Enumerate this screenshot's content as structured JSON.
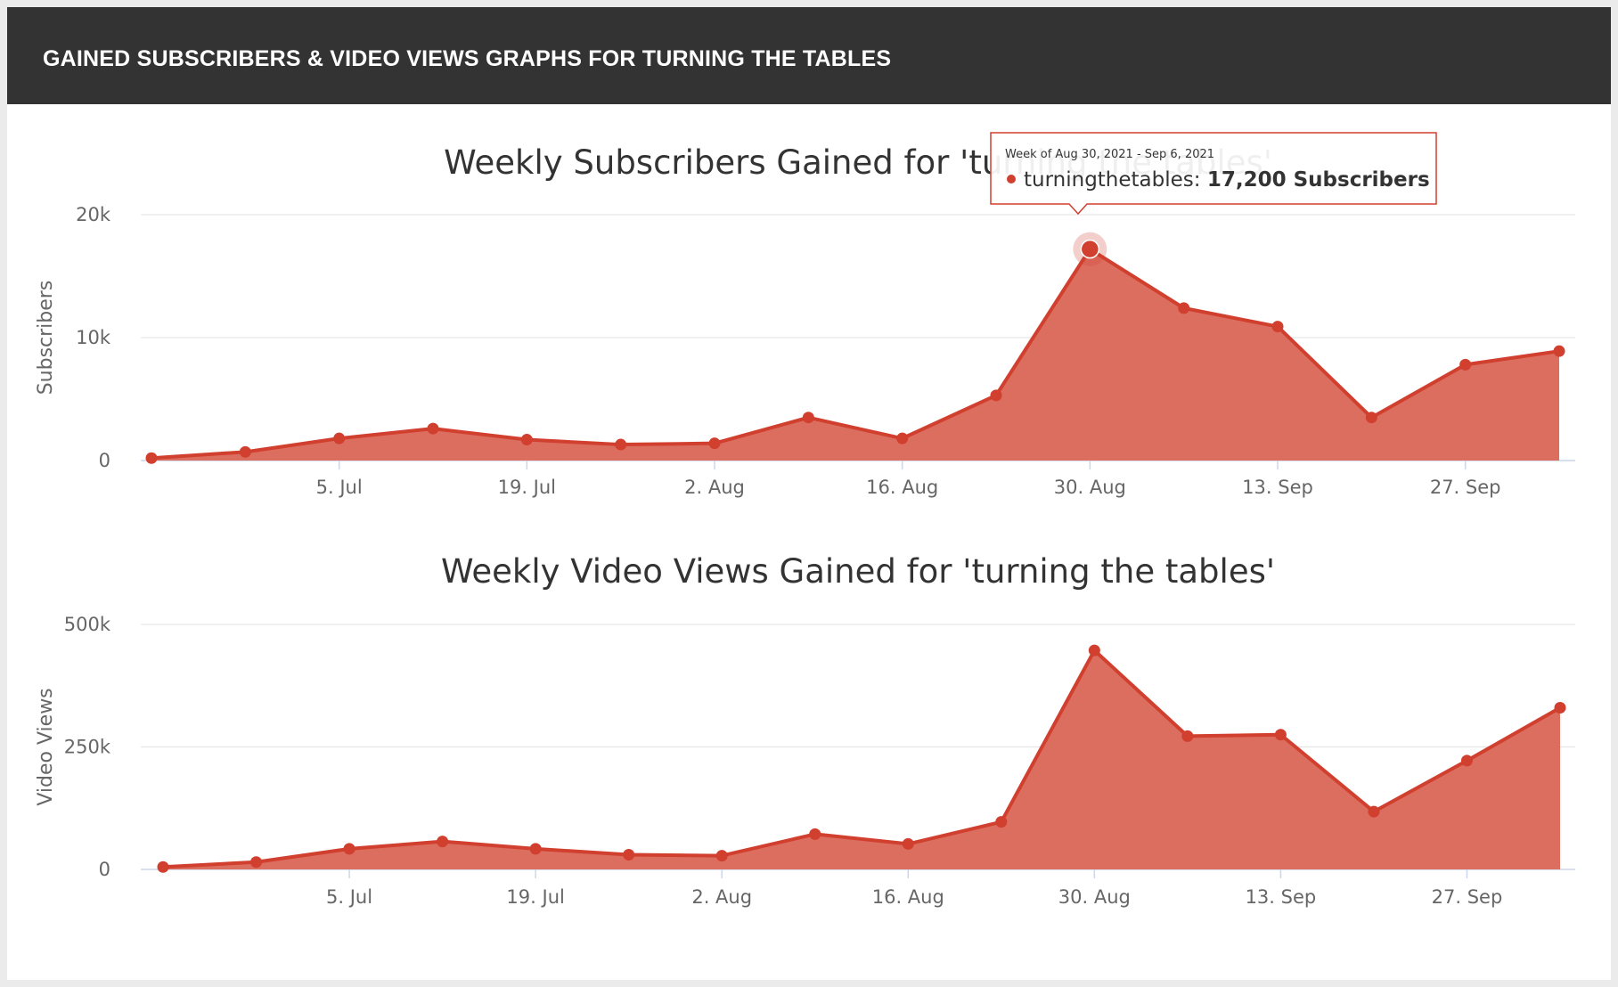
{
  "header": {
    "title": "GAINED SUBSCRIBERS & VIDEO VIEWS GRAPHS FOR TURNING THE TABLES"
  },
  "colors": {
    "series": "#d13f2e",
    "fill": "#dc6e60",
    "grid": "#e6e6e6",
    "header_bg": "#333333"
  },
  "x_tick_labels": [
    "5. Jul",
    "19. Jul",
    "2. Aug",
    "16. Aug",
    "30. Aug",
    "13. Sep",
    "27. Sep"
  ],
  "tooltip": {
    "week": "Week of Aug 30, 2021 - Sep 6, 2021",
    "series_name": "turningthetables",
    "value_text": "17,200 Subscribers"
  },
  "chart_data": [
    {
      "type": "area",
      "title": "Weekly Subscribers Gained for 'turning the tables'",
      "ylabel": "Subscribers",
      "xlabel": "",
      "ylim": [
        0,
        20000
      ],
      "yticks": [
        "0",
        "10k",
        "20k"
      ],
      "grid": true,
      "x": [
        "2021-06-21",
        "2021-06-28",
        "2021-07-05",
        "2021-07-12",
        "2021-07-19",
        "2021-07-26",
        "2021-08-02",
        "2021-08-09",
        "2021-08-16",
        "2021-08-23",
        "2021-08-30",
        "2021-09-06",
        "2021-09-13",
        "2021-09-20",
        "2021-09-27",
        "2021-10-04"
      ],
      "series": [
        {
          "values": [
            200,
            700,
            1800,
            2600,
            1700,
            1300,
            1400,
            3500,
            1800,
            5300,
            17200,
            12400,
            10900,
            3500,
            7800,
            8900
          ]
        }
      ]
    },
    {
      "type": "area",
      "title": "Weekly Video Views Gained for 'turning the tables'",
      "ylabel": "Video Views",
      "xlabel": "",
      "ylim": [
        0,
        500000
      ],
      "yticks": [
        "0",
        "250k",
        "500k"
      ],
      "grid": true,
      "x": [
        "2021-06-21",
        "2021-06-28",
        "2021-07-05",
        "2021-07-12",
        "2021-07-19",
        "2021-07-26",
        "2021-08-02",
        "2021-08-09",
        "2021-08-16",
        "2021-08-23",
        "2021-08-30",
        "2021-09-06",
        "2021-09-13",
        "2021-09-20",
        "2021-09-27",
        "2021-10-04"
      ],
      "series": [
        {
          "values": [
            5000,
            15000,
            42000,
            57000,
            42000,
            30000,
            28000,
            72000,
            52000,
            97000,
            447000,
            272000,
            275000,
            118000,
            222000,
            330000
          ]
        }
      ]
    }
  ]
}
